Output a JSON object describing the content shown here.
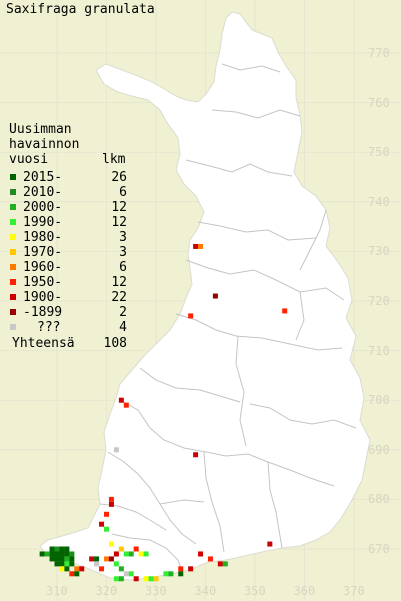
{
  "map": {
    "title": "Saxifraga granulata",
    "colors": {
      "background": "#f0f0d2",
      "land": "#ffffff",
      "grid": "#e6e6d2",
      "border": "#cccccc",
      "axis_text": "#d4d4c0"
    }
  },
  "legend": {
    "heading_lines": [
      "Uusimman",
      "havainnon",
      "vuosi"
    ],
    "count_header": "lkm",
    "rows": [
      {
        "label": "2015-",
        "count": "26",
        "color": "#006400"
      },
      {
        "label": "2010-",
        "count": "6",
        "color": "#1e8c1e"
      },
      {
        "label": "2000-",
        "count": "12",
        "color": "#22b022"
      },
      {
        "label": "1990-",
        "count": "12",
        "color": "#33ee33"
      },
      {
        "label": "1980-",
        "count": "3",
        "color": "#ffff00"
      },
      {
        "label": "1970-",
        "count": "3",
        "color": "#ffc800"
      },
      {
        "label": "1960-",
        "count": "6",
        "color": "#ff7800"
      },
      {
        "label": "1950-",
        "count": "12",
        "color": "#ff2200"
      },
      {
        "label": "1900-",
        "count": "22",
        "color": "#cc0000"
      },
      {
        "label": "-1899",
        "count": "2",
        "color": "#990000"
      },
      {
        "label": "???",
        "count": "4",
        "color": "#c8c8c8"
      }
    ],
    "total_label": "Yhteensä",
    "total_count": "108"
  },
  "grid": {
    "northing_labels": [
      "770",
      "760",
      "750",
      "740",
      "730",
      "720",
      "710",
      "700",
      "690",
      "680",
      "670"
    ],
    "easting_labels": [
      "310",
      "320",
      "330",
      "340",
      "350",
      "360",
      "370"
    ]
  },
  "observations": [
    {
      "e": 307,
      "n": 669,
      "color": "#006400"
    },
    {
      "e": 308,
      "n": 669,
      "color": "#22b022"
    },
    {
      "e": 309,
      "n": 669,
      "color": "#006400"
    },
    {
      "e": 310,
      "n": 669,
      "color": "#006400"
    },
    {
      "e": 311,
      "n": 669,
      "color": "#006400"
    },
    {
      "e": 312,
      "n": 669,
      "color": "#006400"
    },
    {
      "e": 313,
      "n": 669,
      "color": "#1e8c1e"
    },
    {
      "e": 309,
      "n": 670,
      "color": "#006400"
    },
    {
      "e": 310,
      "n": 670,
      "color": "#1e8c1e"
    },
    {
      "e": 311,
      "n": 670,
      "color": "#006400"
    },
    {
      "e": 312,
      "n": 670,
      "color": "#006400"
    },
    {
      "e": 309,
      "n": 668,
      "color": "#006400"
    },
    {
      "e": 310,
      "n": 668,
      "color": "#006400"
    },
    {
      "e": 311,
      "n": 668,
      "color": "#006400"
    },
    {
      "e": 312,
      "n": 668,
      "color": "#22b022"
    },
    {
      "e": 313,
      "n": 668,
      "color": "#006400"
    },
    {
      "e": 310,
      "n": 667,
      "color": "#006400"
    },
    {
      "e": 311,
      "n": 667,
      "color": "#006400"
    },
    {
      "e": 312,
      "n": 667,
      "color": "#33ee33"
    },
    {
      "e": 313,
      "n": 667,
      "color": "#006400"
    },
    {
      "e": 311,
      "n": 666,
      "color": "#ffff00"
    },
    {
      "e": 312,
      "n": 666,
      "color": "#006400"
    },
    {
      "e": 314,
      "n": 666,
      "color": "#ff7800"
    },
    {
      "e": 315,
      "n": 666,
      "color": "#cc0000"
    },
    {
      "e": 313,
      "n": 665,
      "color": "#ff2200"
    },
    {
      "e": 314,
      "n": 665,
      "color": "#006400"
    },
    {
      "e": 317,
      "n": 668,
      "color": "#cc0000"
    },
    {
      "e": 318,
      "n": 668,
      "color": "#006400"
    },
    {
      "e": 318,
      "n": 667,
      "color": "#c8c8c8"
    },
    {
      "e": 319,
      "n": 666,
      "color": "#ff2200"
    },
    {
      "e": 320,
      "n": 668,
      "color": "#ff7800"
    },
    {
      "e": 321,
      "n": 668,
      "color": "#990000"
    },
    {
      "e": 322,
      "n": 669,
      "color": "#cc0000"
    },
    {
      "e": 323,
      "n": 670,
      "color": "#ffc800"
    },
    {
      "e": 324,
      "n": 669,
      "color": "#33ee33"
    },
    {
      "e": 325,
      "n": 669,
      "color": "#22b022"
    },
    {
      "e": 326,
      "n": 670,
      "color": "#ff2200"
    },
    {
      "e": 327,
      "n": 669,
      "color": "#ffff00"
    },
    {
      "e": 328,
      "n": 669,
      "color": "#33ee33"
    },
    {
      "e": 322,
      "n": 667,
      "color": "#33ee33"
    },
    {
      "e": 323,
      "n": 666,
      "color": "#22b022"
    },
    {
      "e": 324,
      "n": 665,
      "color": "#c8c8c8"
    },
    {
      "e": 325,
      "n": 665,
      "color": "#33ee33"
    },
    {
      "e": 326,
      "n": 664,
      "color": "#cc0000"
    },
    {
      "e": 322,
      "n": 664,
      "color": "#33ee33"
    },
    {
      "e": 323,
      "n": 664,
      "color": "#22b022"
    },
    {
      "e": 328,
      "n": 664,
      "color": "#ffff00"
    },
    {
      "e": 329,
      "n": 664,
      "color": "#33ee33"
    },
    {
      "e": 330,
      "n": 664,
      "color": "#ffc800"
    },
    {
      "e": 332,
      "n": 665,
      "color": "#33ee33"
    },
    {
      "e": 333,
      "n": 665,
      "color": "#22b022"
    },
    {
      "e": 335,
      "n": 665,
      "color": "#006400"
    },
    {
      "e": 335,
      "n": 666,
      "color": "#ff2200"
    },
    {
      "e": 337,
      "n": 666,
      "color": "#cc0000"
    },
    {
      "e": 339,
      "n": 669,
      "color": "#cc0000"
    },
    {
      "e": 341,
      "n": 668,
      "color": "#ff2200"
    },
    {
      "e": 343,
      "n": 667,
      "color": "#cc0000"
    },
    {
      "e": 344,
      "n": 667,
      "color": "#22b022"
    },
    {
      "e": 353,
      "n": 671,
      "color": "#cc0000"
    },
    {
      "e": 319,
      "n": 675,
      "color": "#cc0000"
    },
    {
      "e": 320,
      "n": 674,
      "color": "#33ee33"
    },
    {
      "e": 320,
      "n": 677,
      "color": "#ff2200"
    },
    {
      "e": 321,
      "n": 679,
      "color": "#cc0000"
    },
    {
      "e": 321,
      "n": 680,
      "color": "#ff2200"
    },
    {
      "e": 321,
      "n": 671,
      "color": "#ffff00"
    },
    {
      "e": 322,
      "n": 690,
      "color": "#c8c8c8"
    },
    {
      "e": 323,
      "n": 700,
      "color": "#cc0000"
    },
    {
      "e": 324,
      "n": 699,
      "color": "#ff2200"
    },
    {
      "e": 338,
      "n": 689,
      "color": "#cc0000"
    },
    {
      "e": 337,
      "n": 717,
      "color": "#ff2200"
    },
    {
      "e": 342,
      "n": 721,
      "color": "#990000"
    },
    {
      "e": 356,
      "n": 718,
      "color": "#ff2200"
    },
    {
      "e": 338,
      "n": 731,
      "color": "#cc0000"
    },
    {
      "e": 339,
      "n": 731,
      "color": "#ff7800"
    }
  ]
}
